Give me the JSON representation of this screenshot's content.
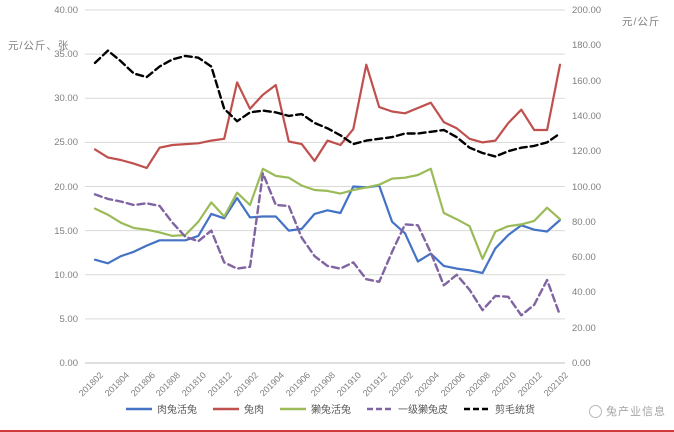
{
  "branding": {
    "label": "兔产业信息",
    "footer_line_color": "#cf3b3b",
    "logo": "circle-logo-icon"
  },
  "chart_data": {
    "type": "line",
    "title": "",
    "grid": true,
    "legend_position": "bottom",
    "left_axis": {
      "title": "元/公斤、张",
      "min": 0,
      "max": 40,
      "step": 5,
      "tick_format": "0.00"
    },
    "right_axis": {
      "title": "元/公斤",
      "min": 0,
      "max": 200,
      "step": 20,
      "tick_format": "0.00"
    },
    "x_values": [
      "201802",
      "201803",
      "201804",
      "201805",
      "201806",
      "201807",
      "201808",
      "201809",
      "201810",
      "201811",
      "201812",
      "201901",
      "201902",
      "201903",
      "201904",
      "201905",
      "201906",
      "201907",
      "201908",
      "201909",
      "201910",
      "201911",
      "201912",
      "202001",
      "202002",
      "202003",
      "202004",
      "202005",
      "202006",
      "202007",
      "202008",
      "202009",
      "202010",
      "202011",
      "202012",
      "202101",
      "202102"
    ],
    "x_tick_labels": [
      "201802",
      "201804",
      "201806",
      "201808",
      "201810",
      "201812",
      "201902",
      "201904",
      "201906",
      "201908",
      "201910",
      "201912",
      "202002",
      "202004",
      "202006",
      "202008",
      "202010",
      "202012",
      "202102"
    ],
    "series": [
      {
        "name": "肉兔活兔",
        "color": "#4472c4",
        "dash": "solid",
        "axis": "left",
        "values": [
          11.7,
          11.3,
          12.1,
          12.6,
          13.3,
          13.9,
          13.9,
          13.9,
          14.4,
          16.9,
          16.4,
          18.7,
          16.5,
          16.6,
          16.6,
          15.0,
          15.2,
          16.9,
          17.3,
          17.0,
          20.0,
          19.9,
          20.1,
          16.0,
          14.7,
          11.5,
          12.4,
          11.0,
          10.7,
          10.5,
          10.2,
          13.0,
          14.5,
          15.6,
          15.1,
          14.9,
          16.2
        ]
      },
      {
        "name": "兔肉",
        "color": "#c0504d",
        "dash": "solid",
        "axis": "left",
        "values": [
          24.2,
          23.3,
          23.0,
          22.6,
          22.1,
          24.4,
          24.7,
          24.8,
          24.9,
          25.2,
          25.4,
          31.8,
          28.8,
          30.4,
          31.5,
          25.1,
          24.8,
          22.9,
          25.2,
          24.7,
          26.5,
          33.8,
          29.0,
          28.5,
          28.3,
          28.9,
          29.5,
          27.3,
          26.6,
          25.4,
          25.0,
          25.2,
          27.2,
          28.7,
          26.4,
          26.4,
          33.8
        ]
      },
      {
        "name": "獭兔活兔",
        "color": "#9bbb59",
        "dash": "solid",
        "axis": "left",
        "values": [
          17.5,
          16.8,
          15.9,
          15.3,
          15.1,
          14.8,
          14.4,
          14.5,
          16.0,
          18.2,
          16.6,
          19.3,
          17.9,
          22.0,
          21.2,
          21.0,
          20.1,
          19.6,
          19.5,
          19.2,
          19.6,
          19.9,
          20.2,
          20.9,
          21.0,
          21.3,
          22.0,
          17.0,
          16.3,
          15.5,
          11.8,
          14.9,
          15.5,
          15.7,
          16.1,
          17.6,
          16.3
        ]
      },
      {
        "name": "一级獭兔皮",
        "color": "#8064a2",
        "dash": "dashed",
        "axis": "left",
        "values": [
          19.1,
          18.6,
          18.3,
          17.9,
          18.1,
          17.8,
          15.9,
          14.3,
          13.8,
          15.0,
          11.4,
          10.7,
          10.9,
          21.5,
          17.9,
          17.8,
          14.2,
          12.1,
          11.0,
          10.7,
          11.4,
          9.5,
          9.2,
          12.6,
          15.7,
          15.6,
          12.5,
          8.8,
          10.0,
          8.3,
          6.0,
          7.6,
          7.5,
          5.4,
          6.6,
          9.4,
          5.4
        ]
      },
      {
        "name": "剪毛统货",
        "color": "#000000",
        "dash": "dashed",
        "axis": "right",
        "values": [
          170,
          177,
          171,
          164,
          162,
          168,
          172,
          174,
          173,
          168,
          144,
          137,
          142,
          143,
          142,
          140,
          141,
          136,
          133,
          129,
          124,
          126,
          127,
          128,
          130,
          130,
          131,
          132,
          128,
          122,
          119,
          117,
          120,
          122,
          123,
          125,
          130
        ]
      }
    ]
  }
}
